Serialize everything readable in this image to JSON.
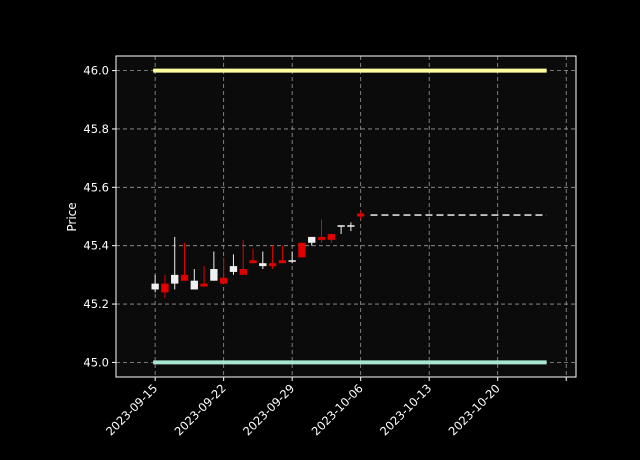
{
  "chart_data": {
    "type": "candlestick",
    "title": "",
    "xlabel": "",
    "ylabel": "Price",
    "ylim": [
      44.95,
      46.05
    ],
    "xlim": [
      "2023-09-11",
      "2023-10-28"
    ],
    "grid": true,
    "background": "#0b0b0b",
    "colors": {
      "up": "#f0f0f0",
      "down": "#e00000",
      "grid": "#9a9a9a",
      "axis": "#ffffff",
      "resistance": "#ffffa0",
      "support": "#a8e6cf",
      "projection": "#d9d9d9"
    },
    "x_ticks": [
      {
        "date": "2023-09-15",
        "label": "2023-09-15"
      },
      {
        "date": "2023-09-22",
        "label": "2023-09-22"
      },
      {
        "date": "2023-09-29",
        "label": "2023-09-29"
      },
      {
        "date": "2023-10-06",
        "label": "2023-10-06"
      },
      {
        "date": "2023-10-13",
        "label": "2023-10-13"
      },
      {
        "date": "2023-10-20",
        "label": "2023-10-20"
      },
      {
        "date": "2023-10-27",
        "label": ""
      }
    ],
    "y_ticks": [
      {
        "value": 45.0,
        "label": "45.0"
      },
      {
        "value": 45.2,
        "label": "45.2"
      },
      {
        "value": 45.4,
        "label": "45.4"
      },
      {
        "value": 45.6,
        "label": "45.6"
      },
      {
        "value": 45.8,
        "label": "45.8"
      },
      {
        "value": 46.0,
        "label": "46.0"
      }
    ],
    "candles": [
      {
        "date": "2023-09-15",
        "open": 45.25,
        "high": 45.3,
        "low": 45.24,
        "close": 45.27
      },
      {
        "date": "2023-09-16",
        "open": 45.27,
        "high": 45.3,
        "low": 45.22,
        "close": 45.24
      },
      {
        "date": "2023-09-17",
        "open": 45.27,
        "high": 45.43,
        "low": 45.25,
        "close": 45.3
      },
      {
        "date": "2023-09-18",
        "open": 45.3,
        "high": 45.41,
        "low": 45.28,
        "close": 45.28
      },
      {
        "date": "2023-09-19",
        "open": 45.25,
        "high": 45.32,
        "low": 45.25,
        "close": 45.28
      },
      {
        "date": "2023-09-20",
        "open": 45.27,
        "high": 45.33,
        "low": 45.26,
        "close": 45.26
      },
      {
        "date": "2023-09-21",
        "open": 45.28,
        "high": 45.38,
        "low": 45.28,
        "close": 45.32
      },
      {
        "date": "2023-09-22",
        "open": 45.29,
        "high": 45.36,
        "low": 45.28,
        "close": 45.27
      },
      {
        "date": "2023-09-23",
        "open": 45.31,
        "high": 45.37,
        "low": 45.3,
        "close": 45.33
      },
      {
        "date": "2023-09-24",
        "open": 45.32,
        "high": 45.42,
        "low": 45.3,
        "close": 45.3
      },
      {
        "date": "2023-09-25",
        "open": 45.35,
        "high": 45.39,
        "low": 45.34,
        "close": 45.34
      },
      {
        "date": "2023-09-26",
        "open": 45.33,
        "high": 45.38,
        "low": 45.32,
        "close": 45.34
      },
      {
        "date": "2023-09-27",
        "open": 45.34,
        "high": 45.4,
        "low": 45.32,
        "close": 45.33
      },
      {
        "date": "2023-09-28",
        "open": 45.35,
        "high": 45.4,
        "low": 45.34,
        "close": 45.34
      },
      {
        "date": "2023-09-29",
        "open": 45.35,
        "high": 45.38,
        "low": 45.34,
        "close": 45.35
      },
      {
        "date": "2023-09-30",
        "open": 45.41,
        "high": 45.41,
        "low": 45.36,
        "close": 45.36
      },
      {
        "date": "2023-10-01",
        "open": 45.41,
        "high": 45.43,
        "low": 45.4,
        "close": 45.43
      },
      {
        "date": "2023-10-02",
        "open": 45.43,
        "high": 45.49,
        "low": 45.41,
        "close": 45.42
      },
      {
        "date": "2023-10-03",
        "open": 45.44,
        "high": 45.44,
        "low": 45.41,
        "close": 45.42
      },
      {
        "date": "2023-10-04",
        "open": 45.47,
        "high": 45.47,
        "low": 45.44,
        "close": 45.47
      },
      {
        "date": "2023-10-05",
        "open": 45.47,
        "high": 45.48,
        "low": 45.45,
        "close": 45.47
      },
      {
        "date": "2023-10-06",
        "open": 45.51,
        "high": 45.52,
        "low": 45.49,
        "close": 45.5
      }
    ],
    "hlines": [
      {
        "name": "resistance",
        "value": 46.0,
        "from": "2023-09-15",
        "to": "2023-10-25"
      },
      {
        "name": "support",
        "value": 45.0,
        "from": "2023-09-15",
        "to": "2023-10-25"
      }
    ],
    "projection": {
      "value": 45.505,
      "from": "2023-10-07",
      "to": "2023-10-25"
    }
  }
}
